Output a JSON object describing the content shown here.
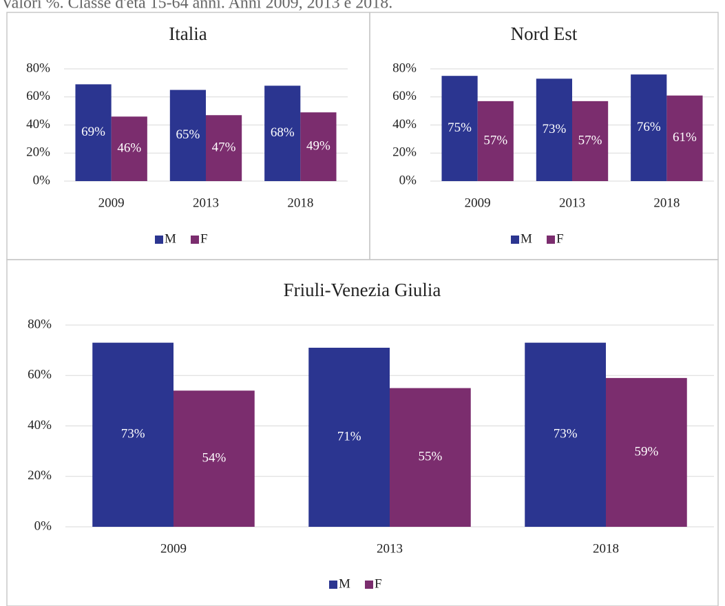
{
  "caption": "Valori %. Classe d'età 15-64 anni. Anni 2009, 2013 e 2018.",
  "chart_data": [
    {
      "type": "bar",
      "title": "Italia",
      "categories": [
        "2009",
        "2013",
        "2018"
      ],
      "series": [
        {
          "name": "M",
          "color": "#2b3590",
          "values": [
            69,
            65,
            68
          ],
          "value_labels": [
            "69%",
            "65%",
            "68%"
          ]
        },
        {
          "name": "F",
          "color": "#7b2d6e",
          "values": [
            46,
            47,
            49
          ],
          "value_labels": [
            "46%",
            "47%",
            "49%"
          ]
        }
      ],
      "ylim": [
        0,
        80
      ],
      "yticks": [
        {
          "value": 0,
          "label": "0%"
        },
        {
          "value": 20,
          "label": "20%"
        },
        {
          "value": 40,
          "label": "40%"
        },
        {
          "value": 60,
          "label": "60%"
        },
        {
          "value": 80,
          "label": "80%"
        }
      ],
      "grid": true,
      "legend": "bottom"
    },
    {
      "type": "bar",
      "title": "Nord Est",
      "categories": [
        "2009",
        "2013",
        "2018"
      ],
      "series": [
        {
          "name": "M",
          "color": "#2b3590",
          "values": [
            75,
            73,
            76
          ],
          "value_labels": [
            "75%",
            "73%",
            "76%"
          ]
        },
        {
          "name": "F",
          "color": "#7b2d6e",
          "values": [
            57,
            57,
            61
          ],
          "value_labels": [
            "57%",
            "57%",
            "61%"
          ]
        }
      ],
      "ylim": [
        0,
        80
      ],
      "yticks": [
        {
          "value": 0,
          "label": "0%"
        },
        {
          "value": 20,
          "label": "20%"
        },
        {
          "value": 40,
          "label": "40%"
        },
        {
          "value": 60,
          "label": "60%"
        },
        {
          "value": 80,
          "label": "80%"
        }
      ],
      "grid": true,
      "legend": "bottom"
    },
    {
      "type": "bar",
      "title": "Friuli-Venezia Giulia",
      "categories": [
        "2009",
        "2013",
        "2018"
      ],
      "series": [
        {
          "name": "M",
          "color": "#2b3590",
          "values": [
            73,
            71,
            73
          ],
          "value_labels": [
            "73%",
            "71%",
            "73%"
          ]
        },
        {
          "name": "F",
          "color": "#7b2d6e",
          "values": [
            54,
            55,
            59
          ],
          "value_labels": [
            "54%",
            "55%",
            "59%"
          ]
        }
      ],
      "ylim": [
        0,
        80
      ],
      "yticks": [
        {
          "value": 0,
          "label": "0%"
        },
        {
          "value": 20,
          "label": "20%"
        },
        {
          "value": 40,
          "label": "40%"
        },
        {
          "value": 60,
          "label": "60%"
        },
        {
          "value": 80,
          "label": "80%"
        }
      ],
      "grid": true,
      "legend": "bottom"
    }
  ]
}
